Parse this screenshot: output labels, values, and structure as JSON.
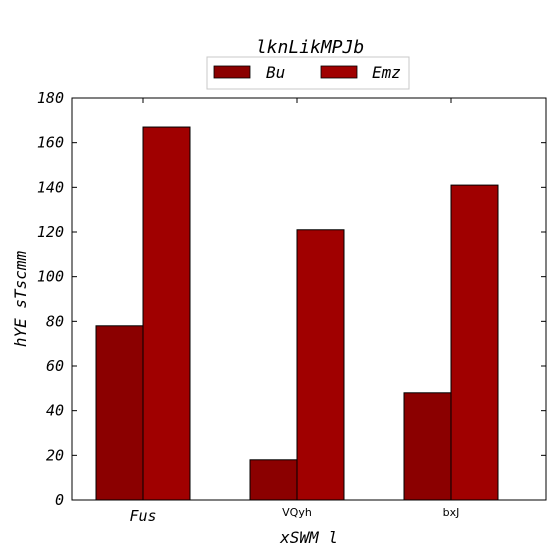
{
  "chart_data": {
    "type": "bar",
    "title": "lknLikMPJb",
    "xlabel": "xSWM l",
    "ylabel": "hYE  sTscmm",
    "categories": [
      "Fus",
      "VQyh",
      "bxJ"
    ],
    "series": [
      {
        "name": "Bu",
        "values": [
          78,
          18,
          48
        ],
        "color": "#8b0000"
      },
      {
        "name": "Emz",
        "values": [
          167,
          121,
          141
        ],
        "color": "#a00000"
      }
    ],
    "ylim": [
      0,
      180
    ],
    "yticks": [
      0,
      20,
      40,
      60,
      80,
      100,
      120,
      140,
      160,
      180
    ],
    "grid": false,
    "legend_position": "top-center"
  }
}
